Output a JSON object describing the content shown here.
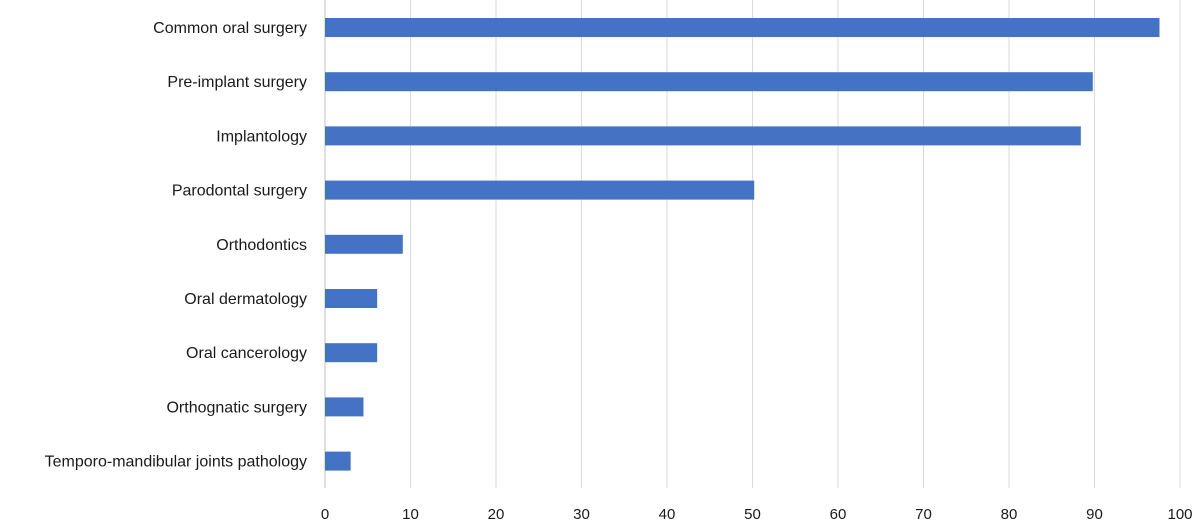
{
  "chart_data": {
    "type": "bar",
    "orientation": "horizontal",
    "categories": [
      "Common oral surgery",
      "Pre-implant surgery",
      "Implantology",
      "Parodontal surgery",
      "Orthodontics",
      "Oral dermatology",
      "Oral cancerology",
      "Orthognatic surgery",
      "Temporo-mandibular joints pathology"
    ],
    "values": [
      97.6,
      89.8,
      88.4,
      50.2,
      9.1,
      6.1,
      6.1,
      4.5,
      3.0
    ],
    "xlim": [
      0,
      100
    ],
    "xticks": [
      0,
      10,
      20,
      30,
      40,
      50,
      60,
      70,
      80,
      90,
      100
    ],
    "grid": true,
    "legend": "none",
    "title": "",
    "xlabel": "",
    "ylabel": "",
    "colors": {
      "bar": "#4472C4"
    }
  }
}
